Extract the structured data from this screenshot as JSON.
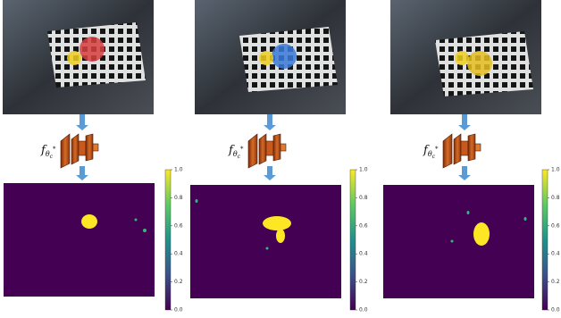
{
  "panels": [
    {
      "model_label": {
        "function": "f",
        "subscript": "θ",
        "sub_subscript": "c",
        "superscript": "*"
      },
      "colorbar_ticks": [
        "0.0",
        "0.2",
        "0.4",
        "0.6",
        "0.8",
        "1.0"
      ]
    },
    {
      "model_label": {
        "function": "f",
        "subscript": "θ",
        "sub_subscript": "c",
        "superscript": "*"
      },
      "colorbar_ticks": [
        "0.0",
        "0.2",
        "0.4",
        "0.6",
        "0.8",
        "1.0"
      ]
    },
    {
      "model_label": {
        "function": "f",
        "subscript": "θ",
        "sub_subscript": "c",
        "superscript": "*"
      },
      "colorbar_ticks": [
        "0.0",
        "0.2",
        "0.4",
        "0.6",
        "0.8",
        "1.0"
      ]
    }
  ]
}
